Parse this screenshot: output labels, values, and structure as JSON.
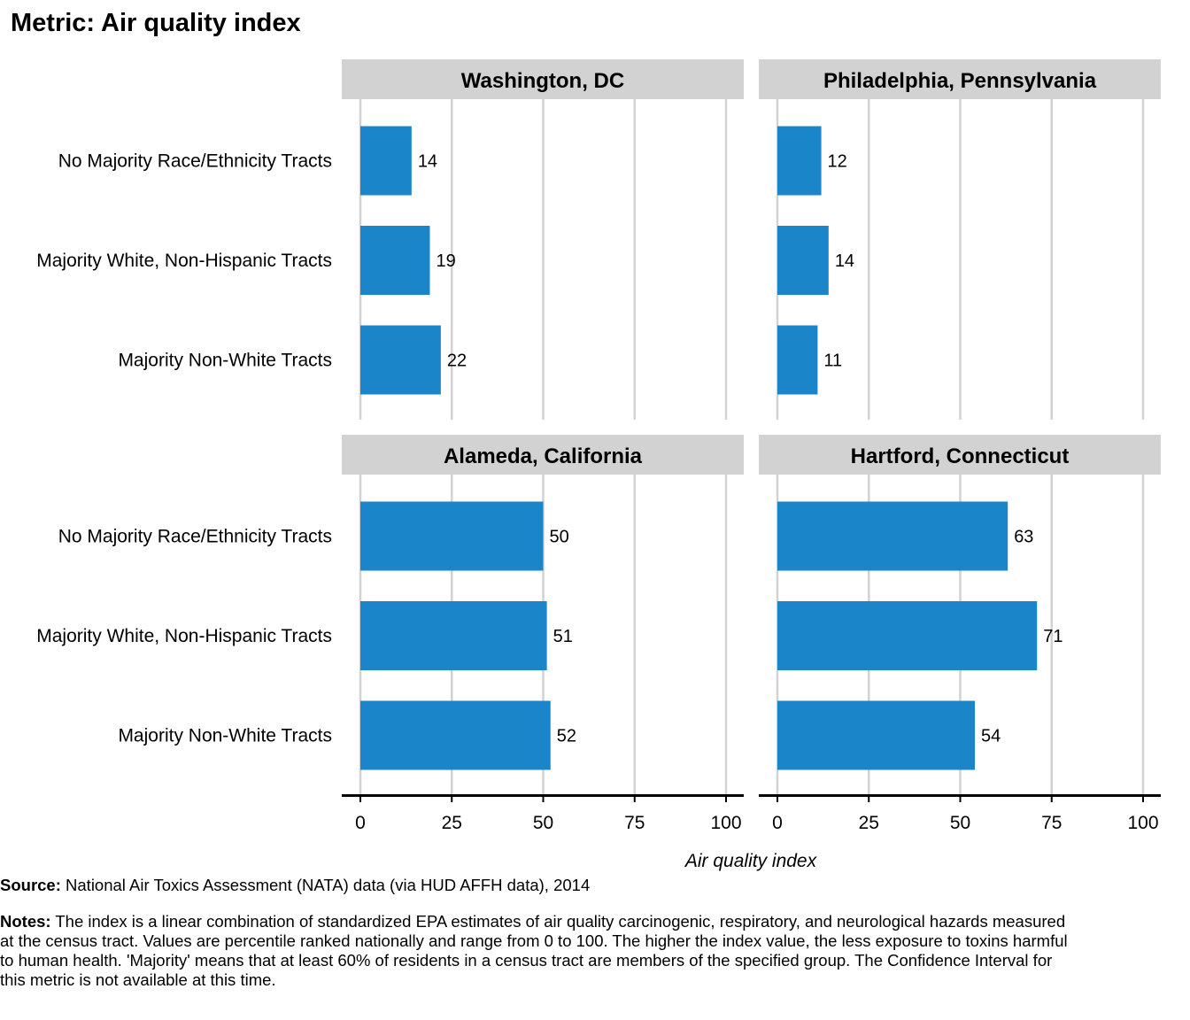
{
  "title": "Metric: Air quality index",
  "chart_data": {
    "type": "bar",
    "orientation": "horizontal",
    "categories": [
      "No Majority Race/Ethnicity Tracts",
      "Majority White, Non-Hispanic Tracts",
      "Majority Non-White Tracts"
    ],
    "xlabel": "Air quality index",
    "xlim": [
      0,
      100
    ],
    "xticks": [
      0,
      25,
      50,
      75,
      100
    ],
    "bar_color": "#1a85c8",
    "grid": "vertical",
    "panels": [
      {
        "title": "Washington, DC",
        "values": [
          14,
          19,
          22
        ]
      },
      {
        "title": "Philadelphia, Pennsylvania",
        "values": [
          12,
          14,
          11
        ]
      },
      {
        "title": "Alameda, California",
        "values": [
          50,
          51,
          52
        ]
      },
      {
        "title": "Hartford, Connecticut",
        "values": [
          63,
          71,
          54
        ]
      }
    ]
  },
  "source": {
    "label": "Source:",
    "text": " National Air Toxics Assessment (NATA) data (via HUD AFFH data), 2014"
  },
  "notes": {
    "label": "Notes:",
    "text": " The index is a linear combination of standardized EPA estimates of air quality carcinogenic, respiratory, and neurological hazards measured at the census tract. Values are percentile ranked nationally and range from 0 to 100. The higher the index value, the less exposure to toxins harmful to human health. 'Majority' means that at least 60% of residents in a census tract are members of the specified group. The Confidence Interval for this metric is not available at this time."
  }
}
